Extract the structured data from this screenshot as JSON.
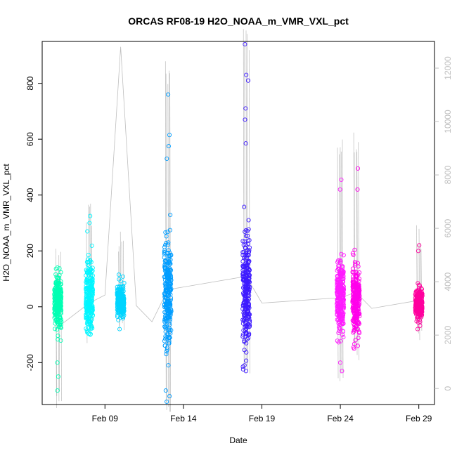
{
  "chart_data": {
    "type": "scatter",
    "title": "ORCAS RF08-19 H2O_NOAA_m_VMR_VXL_pct",
    "xlabel": "Date",
    "ylabel": "H2O_NOAA_m_VMR_VXL_pct",
    "x_ticks": [
      "Feb 09",
      "Feb 14",
      "Feb 19",
      "Feb 24",
      "Feb 29"
    ],
    "y_ticks": [
      "-200",
      "0",
      "200",
      "400",
      "600",
      "800"
    ],
    "y2_ticks": [
      "0",
      "2000",
      "4000",
      "6000",
      "8000",
      "10000",
      "12000"
    ],
    "xlim": [
      "2016-02-05",
      "2016-03-01"
    ],
    "ylim": [
      -350,
      950
    ],
    "y2lim": [
      -600,
      13000
    ],
    "grid": false,
    "background_series": {
      "description": "altitude",
      "color": "#bebebe",
      "points": [
        [
          "2016-02-06",
          2300
        ],
        [
          "2016-02-08",
          3200
        ],
        [
          "2016-02-09",
          3500
        ],
        [
          "2016-02-10",
          12800
        ],
        [
          "2016-02-11",
          3100
        ],
        [
          "2016-02-12",
          2500
        ],
        [
          "2016-02-13",
          3700
        ],
        [
          "2016-02-18",
          4200
        ],
        [
          "2016-02-19",
          3200
        ],
        [
          "2016-02-24",
          3400
        ],
        [
          "2016-02-25",
          3600
        ],
        [
          "2016-02-26",
          3000
        ],
        [
          "2016-02-29",
          3300
        ]
      ]
    },
    "series": [
      {
        "date": "2016-02-06",
        "color": "#00ffb3",
        "min": -300,
        "max": 140,
        "center": 20,
        "spread": 90,
        "outliers": [
          -300,
          140,
          -250,
          -200
        ]
      },
      {
        "date": "2016-02-08",
        "color": "#00f6ff",
        "min": -105,
        "max": 325,
        "center": 30,
        "spread": 110,
        "outliers": [
          325,
          300,
          270
        ]
      },
      {
        "date": "2016-02-10",
        "color": "#00d5ff",
        "min": -80,
        "max": 115,
        "center": 20,
        "spread": 50,
        "outliers": [
          115,
          -80
        ]
      },
      {
        "date": "2016-02-13",
        "color": "#009dff",
        "min": -340,
        "max": 760,
        "center": 40,
        "spread": 170,
        "outliers": [
          760,
          615,
          575,
          530,
          -340,
          -320,
          -300
        ]
      },
      {
        "date": "2016-02-18",
        "color": "#3d1aff",
        "min": -230,
        "max": 940,
        "center": 60,
        "spread": 190,
        "outliers": [
          940,
          830,
          810,
          710,
          670,
          585,
          -230,
          -210
        ]
      },
      {
        "date": "2016-02-24",
        "color": "#ff1aff",
        "min": -230,
        "max": 455,
        "center": 40,
        "spread": 110,
        "outliers": [
          455,
          420,
          -230,
          -200
        ]
      },
      {
        "date": "2016-02-25",
        "color": "#ff00eb",
        "min": -150,
        "max": 495,
        "center": 30,
        "spread": 110,
        "outliers": [
          495,
          420,
          -150
        ]
      },
      {
        "date": "2016-02-29",
        "color": "#ff009e",
        "min": -80,
        "max": 220,
        "center": 10,
        "spread": 45,
        "outliers": [
          220,
          200,
          -80
        ]
      }
    ]
  }
}
